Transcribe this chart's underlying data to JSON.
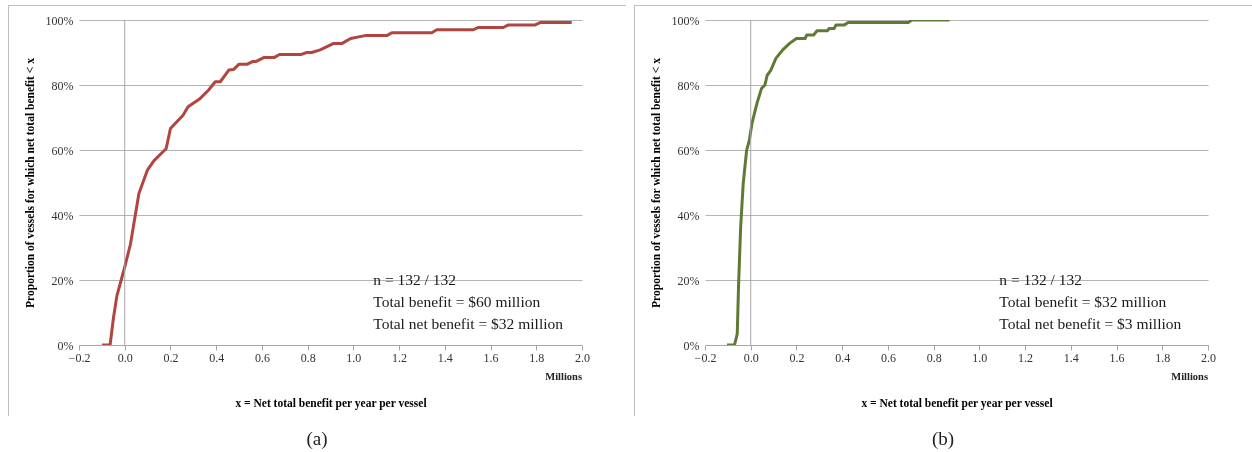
{
  "chart_data": [
    {
      "type": "line",
      "xlabel": "x = Net total benefit per year per vessel",
      "ylabel": "Proportion of vessels for which net total benefit < x",
      "xlim": [
        -0.2,
        2.0
      ],
      "ylim": [
        0,
        100
      ],
      "xticks": [
        -0.2,
        {
          "value": 0,
          "label": "0.0"
        },
        0.2,
        0.4,
        0.6,
        0.8,
        {
          "value": 1,
          "label": "1.0"
        },
        1.2,
        1.4,
        1.6,
        1.8,
        {
          "value": 2,
          "label": "2.0"
        }
      ],
      "yticks": [
        {
          "value": 0,
          "label": "0%"
        },
        {
          "value": 20,
          "label": "20%"
        },
        {
          "value": 40,
          "label": "40%"
        },
        {
          "value": 60,
          "label": "60%"
        },
        {
          "value": 80,
          "label": "80%"
        },
        {
          "value": 100,
          "label": "100%"
        }
      ],
      "grid": "y",
      "ref_lines": [
        {
          "axis": "x",
          "value": 0,
          "color": "#a6a6a6"
        }
      ],
      "series": [
        {
          "color": "#b0463e",
          "x": [
            -0.1,
            -0.064,
            -0.049,
            -0.034,
            0,
            0.025,
            0.062,
            0.099,
            0.129,
            0.181,
            0.2,
            0.255,
            0.277,
            0.329,
            0.366,
            0.396,
            0.418,
            0.455,
            0.477,
            0.499,
            0.536,
            0.559,
            0.573,
            0.61,
            0.655,
            0.677,
            0.773,
            0.796,
            0.818,
            0.855,
            0.914,
            0.951,
            0.988,
            1.051,
            1.146,
            1.168,
            1.343,
            1.365,
            1.525,
            1.547,
            1.656,
            1.678,
            1.795,
            1.817,
            1.955
          ],
          "values": [
            0,
            0,
            8.5,
            15.2,
            24,
            31,
            46.6,
            53.8,
            56.8,
            60.4,
            66.6,
            70.7,
            73.3,
            75.8,
            78.4,
            81,
            81,
            84.6,
            84.8,
            86.4,
            86.4,
            87.2,
            87.2,
            88.5,
            88.5,
            89.4,
            89.4,
            90,
            90,
            90.8,
            92.8,
            92.8,
            94.3,
            95.2,
            95.2,
            96.1,
            96.1,
            97,
            97,
            97.7,
            97.7,
            98.5,
            98.5,
            99.2,
            99.2
          ]
        }
      ],
      "annotations": [
        "n = 132 / 132",
        "Total benefit = $60 million",
        "Total net benefit = $32 million",
        "Millions",
        "(a)"
      ]
    },
    {
      "type": "line",
      "xlabel": "x = Net total benefit per year per vessel",
      "ylabel": "Proportion of vessels for which net total benefit < x",
      "xlim": [
        -0.2,
        2.0
      ],
      "ylim": [
        0,
        100
      ],
      "xticks": [
        -0.2,
        {
          "value": 0,
          "label": "0.0"
        },
        0.2,
        0.4,
        0.6,
        0.8,
        {
          "value": 1,
          "label": "1.0"
        },
        1.2,
        1.4,
        1.6,
        1.8,
        {
          "value": 2,
          "label": "2.0"
        }
      ],
      "yticks": [
        {
          "value": 0,
          "label": "0%"
        },
        {
          "value": 20,
          "label": "20%"
        },
        {
          "value": 40,
          "label": "40%"
        },
        {
          "value": 60,
          "label": "60%"
        },
        {
          "value": 80,
          "label": "80%"
        },
        {
          "value": 100,
          "label": "100%"
        }
      ],
      "grid": "y",
      "ref_lines": [
        {
          "axis": "x",
          "value": 0,
          "color": "#a6a6a6"
        }
      ],
      "series": [
        {
          "color": "#5f7a35",
          "x": [
            -0.104,
            -0.071,
            -0.059,
            -0.053,
            -0.044,
            -0.033,
            -0.018,
            -0.006,
            0.005,
            0.027,
            0.047,
            0.062,
            0.072,
            0.087,
            0.11,
            0.14,
            0.17,
            0.2,
            0.238,
            0.245,
            0.275,
            0.29,
            0.335,
            0.343,
            0.365,
            0.373,
            0.41,
            0.426,
            0.689,
            0.704,
            0.869
          ],
          "values": [
            0,
            0,
            3.4,
            18.8,
            36.3,
            49.6,
            59.9,
            63,
            68.1,
            74.3,
            78.9,
            80,
            83,
            84.4,
            88.2,
            90.8,
            92.8,
            94.3,
            94.3,
            95.4,
            95.4,
            96.7,
            96.7,
            97.4,
            97.4,
            98.5,
            98.5,
            99.2,
            99.2,
            100,
            100
          ]
        }
      ],
      "annotations": [
        "n = 132 / 132",
        "Total benefit = $32 million",
        "Total net benefit = $3 million",
        "Millions",
        "(b)"
      ]
    }
  ]
}
